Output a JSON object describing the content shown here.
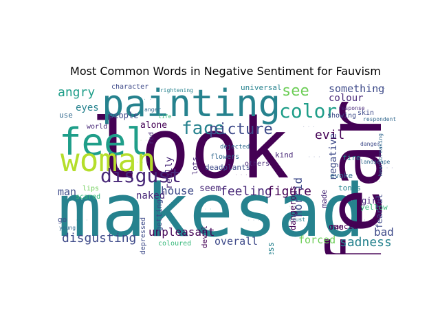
{
  "title": "Most Common Words in Negative Sentiment for Fauvism",
  "colors": {
    "background": "#ffffff",
    "palette": [
      "#440154",
      "#482878",
      "#3e4a89",
      "#31688e",
      "#26828e",
      "#1f9e89",
      "#35b779",
      "#6ece58",
      "#b5de2b"
    ]
  },
  "words": [
    {
      "text": "look"
    },
    {
      "text": "makesad"
    },
    {
      "text": "fear"
    },
    {
      "text": "feel"
    },
    {
      "text": "painting"
    },
    {
      "text": "woman"
    },
    {
      "text": "face"
    },
    {
      "text": "color"
    },
    {
      "text": "picture"
    },
    {
      "text": "see"
    },
    {
      "text": "disgust"
    },
    {
      "text": "angry"
    },
    {
      "text": "disgusting"
    },
    {
      "text": "feeling"
    },
    {
      "text": "figure"
    },
    {
      "text": "sadness"
    },
    {
      "text": "unpleasant"
    },
    {
      "text": "house"
    },
    {
      "text": "something"
    },
    {
      "text": "evil"
    },
    {
      "text": "negative"
    },
    {
      "text": "horrid"
    },
    {
      "text": "forced"
    },
    {
      "text": "overall"
    },
    {
      "text": "naked"
    },
    {
      "text": "man"
    },
    {
      "text": "bad"
    },
    {
      "text": "colour"
    },
    {
      "text": "eyes"
    },
    {
      "text": "people"
    },
    {
      "text": "alone"
    },
    {
      "text": "seem"
    },
    {
      "text": "really"
    },
    {
      "text": "devil"
    },
    {
      "text": "dangerous"
    },
    {
      "text": "fearful"
    },
    {
      "text": "loneliness"
    },
    {
      "text": "rancid"
    },
    {
      "text": "girl"
    },
    {
      "text": "yellow"
    },
    {
      "text": "made"
    },
    {
      "text": "kind"
    },
    {
      "text": "lots"
    },
    {
      "text": "deadplants"
    },
    {
      "text": "others"
    },
    {
      "text": "fire"
    },
    {
      "text": "evoke"
    },
    {
      "text": "tones"
    },
    {
      "text": "character"
    },
    {
      "text": "universal"
    },
    {
      "text": "showing"
    },
    {
      "text": "skin"
    },
    {
      "text": "flowers"
    },
    {
      "text": "world"
    },
    {
      "text": "use"
    },
    {
      "text": "red"
    },
    {
      "text": "lips"
    },
    {
      "text": "scared"
    },
    {
      "text": "getting"
    },
    {
      "text": "depressed"
    },
    {
      "text": "coloured"
    },
    {
      "text": "go"
    },
    {
      "text": "one"
    },
    {
      "text": "dejected"
    },
    {
      "text": "frightening"
    },
    {
      "text": "respondent"
    },
    {
      "text": "danger"
    },
    {
      "text": "trust"
    },
    {
      "text": "young"
    },
    {
      "text": "heartbreaking"
    },
    {
      "text": "response"
    },
    {
      "text": "landscape"
    },
    {
      "text": "anger"
    },
    {
      "text": "life"
    }
  ]
}
